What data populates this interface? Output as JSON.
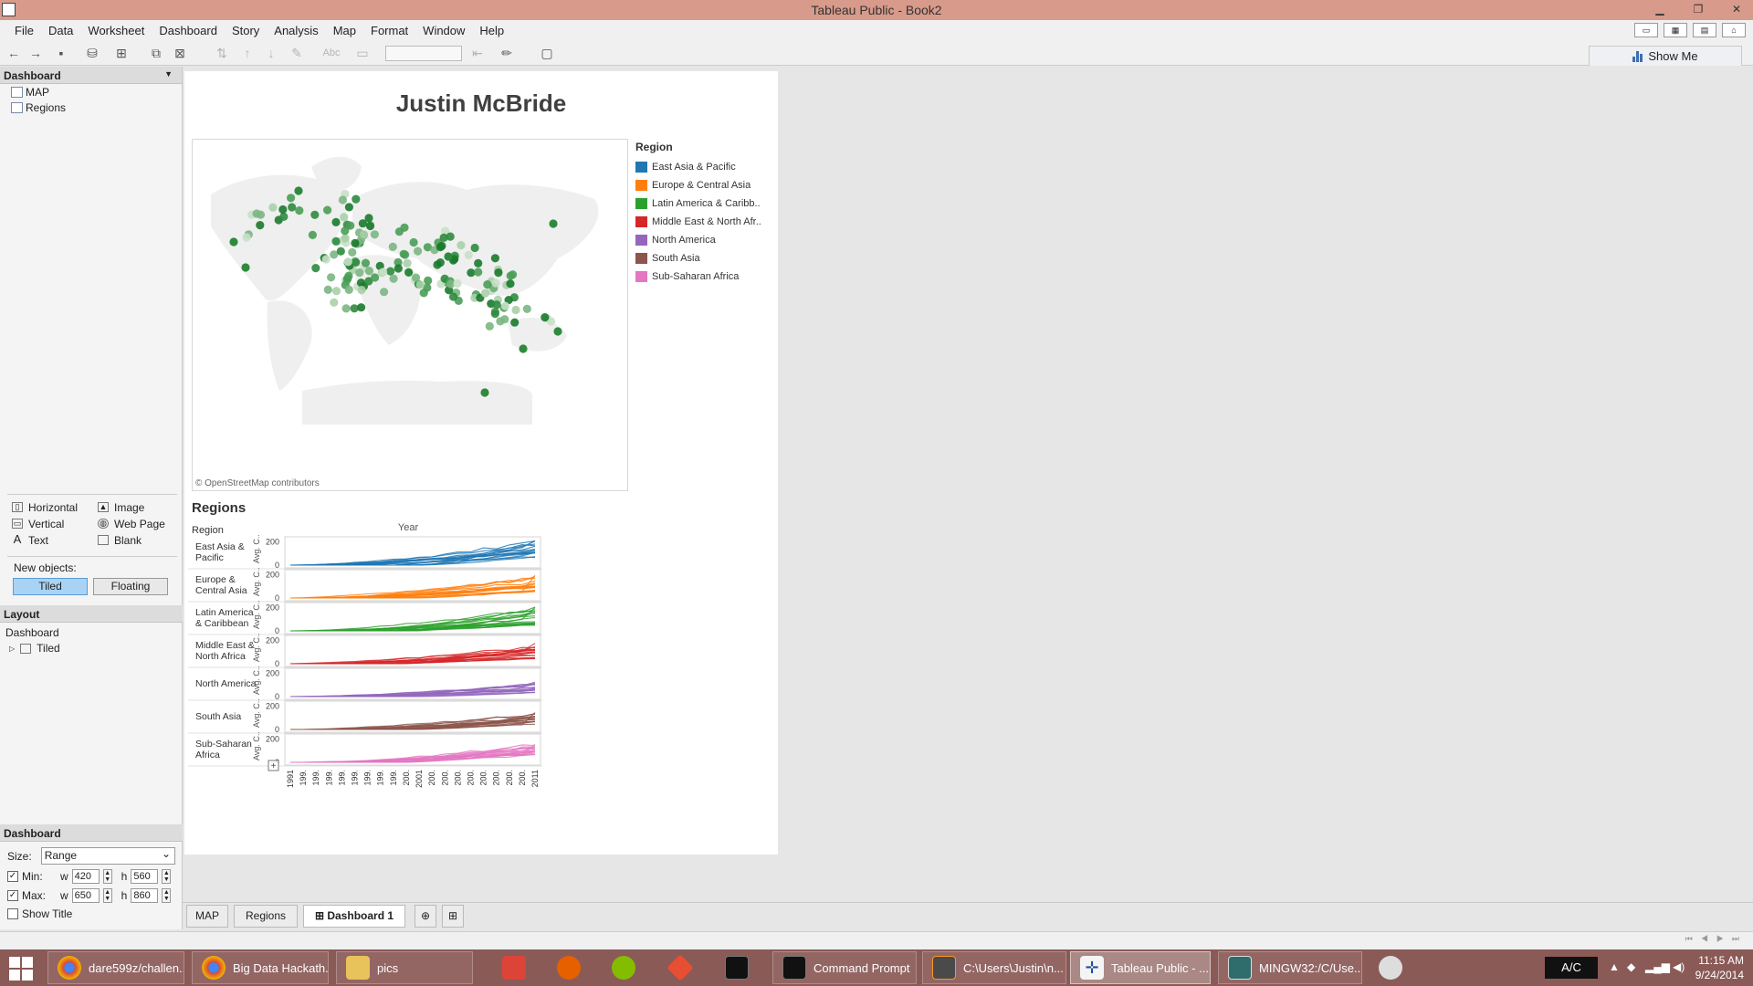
{
  "window": {
    "title": "Tableau Public - Book2"
  },
  "menu": [
    "File",
    "Data",
    "Worksheet",
    "Dashboard",
    "Story",
    "Analysis",
    "Map",
    "Format",
    "Window",
    "Help"
  ],
  "toolbar": {
    "show_me": "Show Me",
    "abc": "Abc"
  },
  "left_panel": {
    "dashboard_header": "Dashboard",
    "sheets": [
      "MAP",
      "Regions"
    ],
    "objects": [
      "Horizontal",
      "Image",
      "Vertical",
      "Web Page",
      "Text",
      "Blank"
    ],
    "new_objects_label": "New objects:",
    "tiled": "Tiled",
    "floating": "Floating",
    "layout_header": "Layout",
    "layout_root": "Dashboard",
    "layout_child": "Tiled",
    "dashboard_header2": "Dashboard",
    "size_label": "Size:",
    "size_value": "Range",
    "min_label": "Min:",
    "max_label": "Max:",
    "w_label": "w",
    "h_label": "h",
    "min_w": "420",
    "min_h": "560",
    "max_w": "650",
    "max_h": "860",
    "show_title": "Show Title"
  },
  "dashboard": {
    "title": "Justin McBride",
    "map_credit": "© OpenStreetMap contributors",
    "legend_title": "Region",
    "legend": [
      {
        "label": "East Asia & Pacific",
        "color": "#1f77b4"
      },
      {
        "label": "Europe & Central Asia",
        "color": "#ff7f0e"
      },
      {
        "label": "Latin America & Caribb..",
        "color": "#2ca02c"
      },
      {
        "label": "Middle East & North Afr..",
        "color": "#d62728"
      },
      {
        "label": "North America",
        "color": "#9467bd"
      },
      {
        "label": "South Asia",
        "color": "#8c564b"
      },
      {
        "label": "Sub-Saharan Africa",
        "color": "#e377c2"
      }
    ],
    "regions_title": "Regions"
  },
  "chart_data": {
    "type": "line",
    "column_header": "Region",
    "top_label": "Year",
    "y_axis_label": "Avg. C..",
    "y_ticks": [
      0,
      200
    ],
    "x_tick_labels": [
      "1991",
      "199.",
      "199.",
      "199.",
      "199.",
      "199.",
      "199.",
      "199.",
      "199.",
      "200.",
      "2001",
      "200.",
      "200.",
      "200.",
      "200.",
      "200.",
      "200.",
      "200.",
      "200.",
      "2011"
    ],
    "rows": [
      {
        "label": "East Asia & Pacific",
        "color": "#1f77b4",
        "max_value": 210
      },
      {
        "label": "Europe & Central Asia",
        "color": "#ff7f0e",
        "max_value": 195
      },
      {
        "label": "Latin America & Caribbean",
        "color": "#2ca02c",
        "max_value": 200
      },
      {
        "label": "Middle East & North Africa",
        "color": "#d62728",
        "max_value": 175
      },
      {
        "label": "North America",
        "color": "#9467bd",
        "max_value": 125
      },
      {
        "label": "South Asia",
        "color": "#8c564b",
        "max_value": 145
      },
      {
        "label": "Sub-Saharan Africa",
        "color": "#e377c2",
        "max_value": 155
      }
    ]
  },
  "tabs": [
    "MAP",
    "Regions",
    "Dashboard 1"
  ],
  "taskbar": {
    "items": [
      "dare599z/challen...",
      "Big Data Hackath...",
      "pics",
      "Command Prompt",
      "C:\\Users\\Justin\\n...",
      "Tableau Public - ...",
      "MINGW32:/C/Use..."
    ],
    "ac": "A/C",
    "time": "11:15 AM",
    "date": "9/24/2014"
  }
}
